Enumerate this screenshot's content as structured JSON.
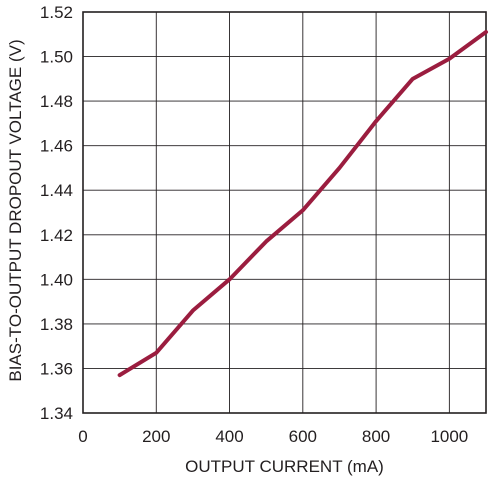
{
  "chart_data": {
    "type": "line",
    "title": "",
    "xlabel": "OUTPUT CURRENT (mA)",
    "ylabel": "BIAS-TO-OUTPUT DROPOUT VOLTAGE (V)",
    "xlim": [
      0,
      1100
    ],
    "ylim": [
      1.34,
      1.52
    ],
    "x_ticks": [
      0,
      200,
      400,
      600,
      800,
      1000
    ],
    "x_tick_labels": [
      "0",
      "200",
      "400",
      "600",
      "800",
      "1000"
    ],
    "y_ticks": [
      1.34,
      1.36,
      1.38,
      1.4,
      1.42,
      1.44,
      1.46,
      1.48,
      1.5,
      1.52
    ],
    "y_tick_labels": [
      "1.34",
      "1.36",
      "1.38",
      "1.40",
      "1.42",
      "1.44",
      "1.46",
      "1.48",
      "1.50",
      "1.52"
    ],
    "grid": true,
    "series": [
      {
        "color": "#9b1d3f",
        "x": [
          100,
          200,
          300,
          400,
          500,
          600,
          700,
          800,
          900,
          1000,
          1100
        ],
        "y": [
          1.357,
          1.367,
          1.386,
          1.4,
          1.417,
          1.431,
          1.45,
          1.471,
          1.49,
          1.499,
          1.511
        ]
      }
    ]
  }
}
